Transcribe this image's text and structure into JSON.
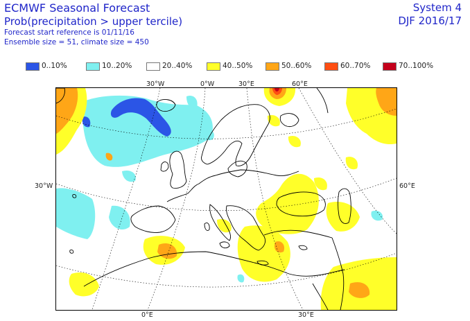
{
  "header": {
    "title": "ECMWF Seasonal Forecast",
    "subtitle": "Prob(precipitation > upper tercile)",
    "start_ref": "Forecast start reference is 01/11/16",
    "ensemble": "Ensemble size = 51, climate size = 450",
    "system": "System 4",
    "season": "DJF 2016/17"
  },
  "legend": [
    {
      "label": "0..10%",
      "color": "#2b55e6"
    },
    {
      "label": "10..20%",
      "color": "#7ff0f0"
    },
    {
      "label": "20..40%",
      "color": "#ffffff"
    },
    {
      "label": "40..50%",
      "color": "#ffff29"
    },
    {
      "label": "50..60%",
      "color": "#ffa617"
    },
    {
      "label": "60..70%",
      "color": "#ff4e12"
    },
    {
      "label": "70..100%",
      "color": "#c4001b"
    }
  ],
  "gridlabels": {
    "top_30w": "30°W",
    "top_0w": "0°W",
    "top_30e": "30°E",
    "top_60e": "60°E",
    "left_30w": "30°W",
    "right_60e": "60°E",
    "bottom_0e": "0°E",
    "bottom_30e": "30°E"
  }
}
